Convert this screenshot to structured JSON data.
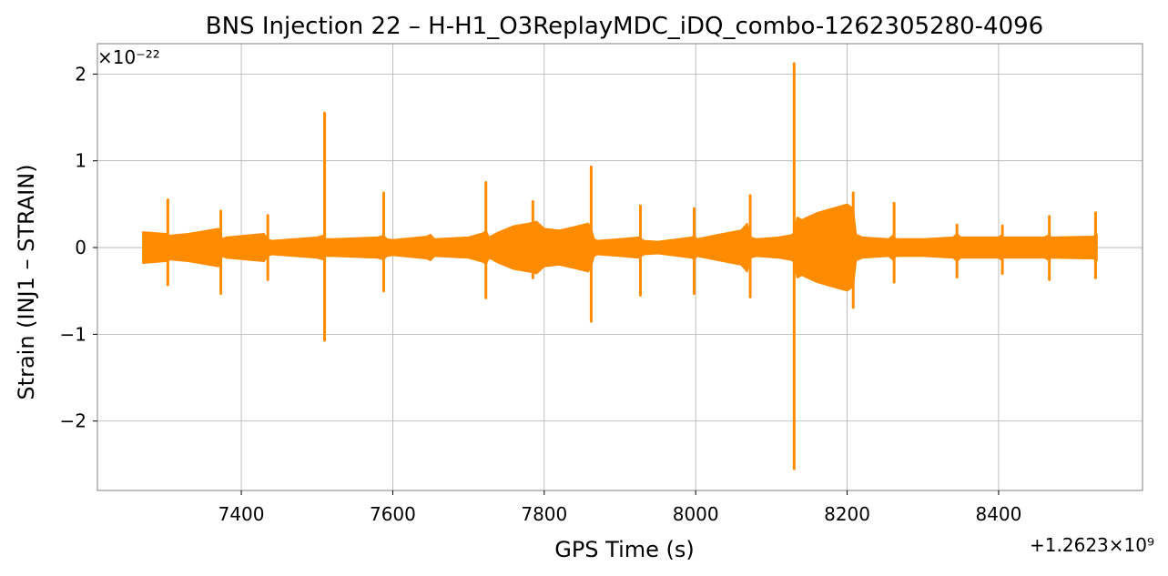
{
  "chart_data": {
    "type": "line",
    "title": "BNS Injection 22 – H-H1_O3ReplayMDC_iDQ_combo-1262305280-4096",
    "xlabel": "GPS Time (s)",
    "ylabel": "Strain (INJ1 – STRAIN)",
    "x_offset_label": "+1.2623×10⁹",
    "y_multiplier_label": "×10⁻²²",
    "x_offset": 1262300000,
    "y_multiplier": 1e-22,
    "xlim": [
      7210,
      8590
    ],
    "ylim": [
      -2.8,
      2.35
    ],
    "xticks": [
      7400,
      7600,
      7800,
      8000,
      8200,
      8400
    ],
    "xtick_labels": [
      "7400",
      "7600",
      "7800",
      "8000",
      "8200",
      "8400"
    ],
    "yticks": [
      -2,
      -1,
      0,
      1,
      2
    ],
    "ytick_labels": [
      "−2",
      "−1",
      "0",
      "1",
      "2"
    ],
    "grid": true,
    "line_color": "#ff8c00",
    "envelope": {
      "x": [
        7270,
        7300,
        7305,
        7330,
        7370,
        7375,
        7380,
        7430,
        7435,
        7440,
        7500,
        7508,
        7512,
        7520,
        7580,
        7588,
        7592,
        7600,
        7645,
        7650,
        7655,
        7700,
        7720,
        7723,
        7727,
        7740,
        7760,
        7780,
        7790,
        7800,
        7820,
        7840,
        7858,
        7862,
        7866,
        7870,
        7900,
        7925,
        7928,
        7932,
        7950,
        7995,
        7998,
        8002,
        8030,
        8060,
        8068,
        8072,
        8080,
        8110,
        8128,
        8131,
        8134,
        8140,
        8160,
        8180,
        8200,
        8208,
        8212,
        8220,
        8255,
        8260,
        8265,
        8300,
        8340,
        8345,
        8350,
        8400,
        8403,
        8407,
        8460,
        8465,
        8470,
        8525,
        8530
      ],
      "upper": [
        0.18,
        0.16,
        0.14,
        0.16,
        0.22,
        0.1,
        0.12,
        0.16,
        0.1,
        0.08,
        0.12,
        0.14,
        0.1,
        0.1,
        0.12,
        0.14,
        0.1,
        0.09,
        0.13,
        0.15,
        0.1,
        0.12,
        0.17,
        0.2,
        0.12,
        0.18,
        0.25,
        0.28,
        0.3,
        0.22,
        0.2,
        0.24,
        0.28,
        0.22,
        0.1,
        0.08,
        0.1,
        0.12,
        0.1,
        0.08,
        0.07,
        0.12,
        0.14,
        0.1,
        0.15,
        0.2,
        0.28,
        0.12,
        0.1,
        0.12,
        0.15,
        0.22,
        0.35,
        0.32,
        0.4,
        0.45,
        0.5,
        0.45,
        0.15,
        0.12,
        0.1,
        0.14,
        0.1,
        0.1,
        0.12,
        0.16,
        0.12,
        0.12,
        0.14,
        0.12,
        0.12,
        0.14,
        0.12,
        0.13,
        0.15
      ],
      "lower": [
        -0.18,
        -0.16,
        -0.14,
        -0.16,
        -0.22,
        -0.1,
        -0.12,
        -0.16,
        -0.1,
        -0.08,
        -0.12,
        -0.14,
        -0.1,
        -0.1,
        -0.12,
        -0.14,
        -0.1,
        -0.09,
        -0.13,
        -0.15,
        -0.1,
        -0.12,
        -0.17,
        -0.2,
        -0.12,
        -0.18,
        -0.25,
        -0.28,
        -0.3,
        -0.22,
        -0.2,
        -0.24,
        -0.28,
        -0.22,
        -0.1,
        -0.08,
        -0.1,
        -0.12,
        -0.1,
        -0.08,
        -0.07,
        -0.12,
        -0.14,
        -0.1,
        -0.15,
        -0.2,
        -0.28,
        -0.12,
        -0.1,
        -0.12,
        -0.15,
        -0.22,
        -0.35,
        -0.32,
        -0.4,
        -0.45,
        -0.5,
        -0.45,
        -0.15,
        -0.12,
        -0.1,
        -0.14,
        -0.1,
        -0.1,
        -0.12,
        -0.16,
        -0.12,
        -0.12,
        -0.14,
        -0.12,
        -0.12,
        -0.14,
        -0.12,
        -0.13,
        -0.15
      ]
    },
    "spikes": [
      {
        "x": 7303,
        "max": 0.55,
        "min": -0.43
      },
      {
        "x": 7373,
        "max": 0.42,
        "min": -0.53
      },
      {
        "x": 7435,
        "max": 0.37,
        "min": -0.37
      },
      {
        "x": 7510,
        "max": 1.55,
        "min": -1.07
      },
      {
        "x": 7588,
        "max": 0.63,
        "min": -0.5
      },
      {
        "x": 7723,
        "max": 0.75,
        "min": -0.58
      },
      {
        "x": 7785,
        "max": 0.53,
        "min": -0.35
      },
      {
        "x": 7862,
        "max": 0.93,
        "min": -0.85
      },
      {
        "x": 7927,
        "max": 0.48,
        "min": -0.55
      },
      {
        "x": 7998,
        "max": 0.45,
        "min": -0.53
      },
      {
        "x": 8072,
        "max": 0.6,
        "min": -0.57
      },
      {
        "x": 8130,
        "max": 2.12,
        "min": -2.55
      },
      {
        "x": 8208,
        "max": 0.63,
        "min": -0.69
      },
      {
        "x": 8262,
        "max": 0.51,
        "min": -0.4
      },
      {
        "x": 8345,
        "max": 0.26,
        "min": -0.34
      },
      {
        "x": 8405,
        "max": 0.25,
        "min": -0.3
      },
      {
        "x": 8467,
        "max": 0.36,
        "min": -0.37
      },
      {
        "x": 8528,
        "max": 0.4,
        "min": -0.35
      }
    ]
  }
}
